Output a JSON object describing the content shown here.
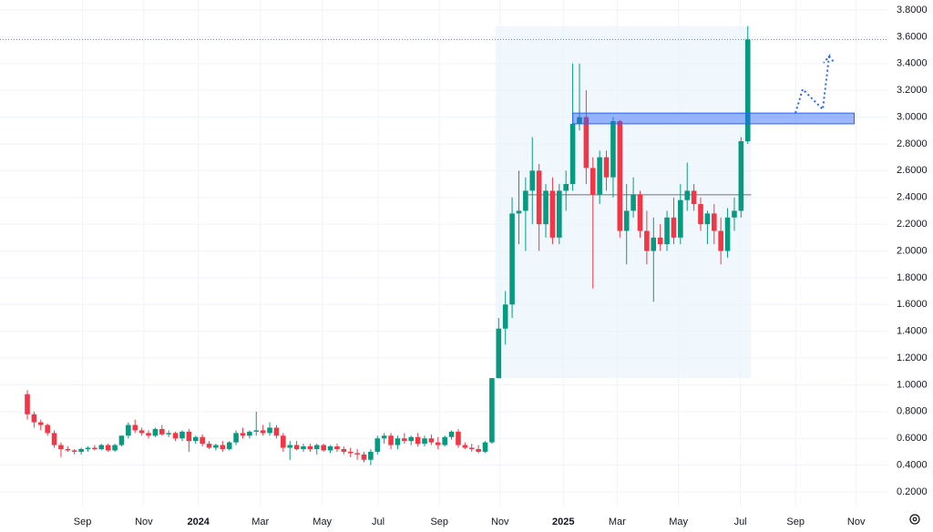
{
  "chart_data": {
    "type": "candlestick",
    "ylim": [
      0.2,
      3.8
    ],
    "yticks": [
      {
        "value": 0.2,
        "label": "0.2000"
      },
      {
        "value": 0.4,
        "label": "0.4000"
      },
      {
        "value": 0.6,
        "label": "0.6000"
      },
      {
        "value": 0.8,
        "label": "0.8000"
      },
      {
        "value": 1.0,
        "label": "1.0000"
      },
      {
        "value": 1.2,
        "label": "1.2000"
      },
      {
        "value": 1.4,
        "label": "1.4000"
      },
      {
        "value": 1.6,
        "label": "1.6000"
      },
      {
        "value": 1.8,
        "label": "1.8000"
      },
      {
        "value": 2.0,
        "label": "2.0000"
      },
      {
        "value": 2.2,
        "label": "2.2000"
      },
      {
        "value": 2.4,
        "label": "2.4000"
      },
      {
        "value": 2.6,
        "label": "2.6000"
      },
      {
        "value": 2.8,
        "label": "2.8000"
      },
      {
        "value": 3.0,
        "label": "3.0000"
      },
      {
        "value": 3.2,
        "label": "3.2000"
      },
      {
        "value": 3.4,
        "label": "3.4000"
      },
      {
        "value": 3.6,
        "label": "3.6000"
      },
      {
        "value": 3.8,
        "label": "3.8000"
      }
    ],
    "xlim": [
      -4,
      130
    ],
    "xticks": [
      {
        "value": 8.2,
        "label": "Sep"
      },
      {
        "value": 17.3,
        "label": "Nov"
      },
      {
        "value": 25.4,
        "label": "2024"
      },
      {
        "value": 34.6,
        "label": "Mar"
      },
      {
        "value": 43.8,
        "label": "May"
      },
      {
        "value": 52.1,
        "label": "Jul"
      },
      {
        "value": 61.2,
        "label": "Sep"
      },
      {
        "value": 70.2,
        "label": "Nov"
      },
      {
        "value": 79.6,
        "label": "2025"
      },
      {
        "value": 87.6,
        "label": "Mar"
      },
      {
        "value": 96.7,
        "label": "May"
      },
      {
        "value": 105.9,
        "label": "Jul"
      },
      {
        "value": 114.1,
        "label": "Sep"
      },
      {
        "value": 123.1,
        "label": "Nov"
      }
    ],
    "grid": true,
    "up_color": "#089981",
    "down_color": "#f23645",
    "ohlc": [
      [
        0.93,
        0.96,
        0.74,
        0.78
      ],
      [
        0.78,
        0.8,
        0.68,
        0.72
      ],
      [
        0.72,
        0.74,
        0.66,
        0.7
      ],
      [
        0.7,
        0.71,
        0.62,
        0.64
      ],
      [
        0.64,
        0.66,
        0.53,
        0.55
      ],
      [
        0.55,
        0.57,
        0.46,
        0.52
      ],
      [
        0.52,
        0.54,
        0.5,
        0.51
      ],
      [
        0.51,
        0.52,
        0.48,
        0.5
      ],
      [
        0.5,
        0.53,
        0.48,
        0.52
      ],
      [
        0.52,
        0.54,
        0.5,
        0.53
      ],
      [
        0.53,
        0.55,
        0.51,
        0.52
      ],
      [
        0.52,
        0.56,
        0.51,
        0.55
      ],
      [
        0.55,
        0.56,
        0.5,
        0.51
      ],
      [
        0.51,
        0.56,
        0.5,
        0.55
      ],
      [
        0.55,
        0.62,
        0.54,
        0.62
      ],
      [
        0.62,
        0.72,
        0.6,
        0.7
      ],
      [
        0.7,
        0.74,
        0.64,
        0.66
      ],
      [
        0.66,
        0.68,
        0.62,
        0.64
      ],
      [
        0.64,
        0.66,
        0.6,
        0.62
      ],
      [
        0.62,
        0.68,
        0.61,
        0.67
      ],
      [
        0.67,
        0.7,
        0.62,
        0.63
      ],
      [
        0.63,
        0.66,
        0.61,
        0.64
      ],
      [
        0.64,
        0.65,
        0.58,
        0.6
      ],
      [
        0.6,
        0.66,
        0.58,
        0.65
      ],
      [
        0.65,
        0.67,
        0.5,
        0.58
      ],
      [
        0.58,
        0.62,
        0.56,
        0.61
      ],
      [
        0.61,
        0.63,
        0.54,
        0.56
      ],
      [
        0.56,
        0.58,
        0.52,
        0.53
      ],
      [
        0.53,
        0.56,
        0.51,
        0.55
      ],
      [
        0.55,
        0.58,
        0.5,
        0.52
      ],
      [
        0.52,
        0.58,
        0.51,
        0.57
      ],
      [
        0.57,
        0.66,
        0.55,
        0.64
      ],
      [
        0.64,
        0.68,
        0.6,
        0.62
      ],
      [
        0.62,
        0.66,
        0.6,
        0.65
      ],
      [
        0.65,
        0.8,
        0.62,
        0.66
      ],
      [
        0.66,
        0.7,
        0.62,
        0.64
      ],
      [
        0.64,
        0.72,
        0.62,
        0.68
      ],
      [
        0.68,
        0.7,
        0.6,
        0.62
      ],
      [
        0.62,
        0.64,
        0.5,
        0.53
      ],
      [
        0.53,
        0.58,
        0.44,
        0.55
      ],
      [
        0.55,
        0.58,
        0.51,
        0.52
      ],
      [
        0.52,
        0.56,
        0.5,
        0.54
      ],
      [
        0.54,
        0.56,
        0.5,
        0.52
      ],
      [
        0.52,
        0.56,
        0.48,
        0.55
      ],
      [
        0.55,
        0.56,
        0.5,
        0.51
      ],
      [
        0.51,
        0.55,
        0.49,
        0.54
      ],
      [
        0.54,
        0.56,
        0.5,
        0.52
      ],
      [
        0.52,
        0.54,
        0.48,
        0.5
      ],
      [
        0.5,
        0.53,
        0.46,
        0.49
      ],
      [
        0.49,
        0.52,
        0.44,
        0.48
      ],
      [
        0.48,
        0.5,
        0.42,
        0.44
      ],
      [
        0.44,
        0.52,
        0.4,
        0.5
      ],
      [
        0.5,
        0.62,
        0.48,
        0.6
      ],
      [
        0.6,
        0.64,
        0.56,
        0.62
      ],
      [
        0.62,
        0.64,
        0.52,
        0.55
      ],
      [
        0.55,
        0.62,
        0.52,
        0.6
      ],
      [
        0.6,
        0.64,
        0.56,
        0.58
      ],
      [
        0.58,
        0.62,
        0.55,
        0.61
      ],
      [
        0.61,
        0.64,
        0.54,
        0.56
      ],
      [
        0.56,
        0.62,
        0.54,
        0.6
      ],
      [
        0.6,
        0.63,
        0.55,
        0.57
      ],
      [
        0.57,
        0.61,
        0.52,
        0.55
      ],
      [
        0.55,
        0.62,
        0.54,
        0.61
      ],
      [
        0.61,
        0.66,
        0.59,
        0.65
      ],
      [
        0.65,
        0.67,
        0.53,
        0.55
      ],
      [
        0.55,
        0.57,
        0.52,
        0.53
      ],
      [
        0.53,
        0.56,
        0.5,
        0.52
      ],
      [
        0.52,
        0.55,
        0.49,
        0.5
      ],
      [
        0.5,
        0.58,
        0.49,
        0.57
      ],
      [
        0.57,
        1.05,
        0.56,
        1.05
      ],
      [
        1.05,
        1.5,
        1.05,
        1.42
      ],
      [
        1.42,
        1.7,
        1.3,
        1.6
      ],
      [
        1.6,
        2.4,
        1.5,
        2.28
      ],
      [
        2.28,
        2.6,
        2.05,
        2.3
      ],
      [
        2.3,
        2.55,
        2.0,
        2.45
      ],
      [
        2.45,
        2.85,
        2.2,
        2.6
      ],
      [
        2.6,
        2.65,
        2.0,
        2.2
      ],
      [
        2.2,
        2.5,
        2.1,
        2.45
      ],
      [
        2.45,
        2.55,
        2.05,
        2.1
      ],
      [
        2.1,
        2.5,
        2.05,
        2.45
      ],
      [
        2.45,
        2.6,
        2.3,
        2.5
      ],
      [
        2.5,
        3.4,
        2.45,
        2.95
      ],
      [
        2.95,
        3.4,
        2.9,
        3.0
      ],
      [
        3.0,
        3.2,
        2.5,
        2.62
      ],
      [
        2.62,
        2.7,
        1.72,
        2.42
      ],
      [
        2.42,
        2.75,
        2.35,
        2.7
      ],
      [
        2.7,
        2.75,
        2.45,
        2.55
      ],
      [
        2.55,
        3.0,
        2.4,
        2.97
      ],
      [
        2.97,
        2.98,
        2.1,
        2.15
      ],
      [
        2.15,
        2.5,
        1.9,
        2.3
      ],
      [
        2.3,
        2.55,
        2.25,
        2.42
      ],
      [
        2.42,
        2.45,
        2.1,
        2.15
      ],
      [
        2.15,
        2.3,
        1.9,
        2.0
      ],
      [
        2.0,
        2.25,
        1.62,
        2.1
      ],
      [
        2.1,
        2.2,
        2.0,
        2.05
      ],
      [
        2.05,
        2.3,
        2.0,
        2.25
      ],
      [
        2.25,
        2.4,
        2.05,
        2.1
      ],
      [
        2.1,
        2.5,
        2.05,
        2.38
      ],
      [
        2.38,
        2.66,
        2.3,
        2.45
      ],
      [
        2.45,
        2.5,
        2.3,
        2.35
      ],
      [
        2.35,
        2.4,
        2.15,
        2.2
      ],
      [
        2.2,
        2.3,
        2.05,
        2.28
      ],
      [
        2.28,
        2.35,
        2.05,
        2.15
      ],
      [
        2.15,
        2.25,
        1.9,
        2.0
      ],
      [
        2.0,
        2.32,
        1.95,
        2.25
      ],
      [
        2.25,
        2.4,
        2.15,
        2.3
      ],
      [
        2.3,
        2.85,
        2.25,
        2.82
      ],
      [
        2.82,
        3.68,
        2.8,
        3.58
      ]
    ],
    "range_box": {
      "x": [
        69.5,
        107.5
      ],
      "y": [
        1.05,
        3.68
      ],
      "color": "#e8f4fb"
    },
    "poc_line": {
      "x": [
        74,
        107.5
      ],
      "y": 2.42,
      "color": "#9e9e9e"
    },
    "zone": {
      "x": [
        81,
        122.8
      ],
      "y": [
        2.95,
        3.03
      ],
      "color": "#2962ff"
    },
    "price_line": {
      "y": 3.58,
      "color": "#26a69a"
    }
  }
}
